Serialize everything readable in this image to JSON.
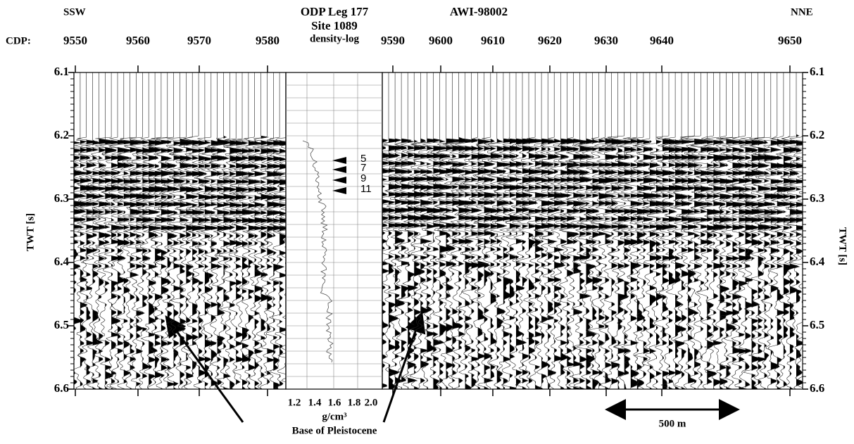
{
  "labels": {
    "left_direction": "SSW",
    "right_direction": "NNE",
    "site_title": "ODP Leg 177",
    "site": "Site 1089",
    "log": "density-log",
    "profile": "AWI-98002",
    "cdp_label": "CDP:",
    "y_axis_left": "TWT [s]",
    "y_axis_right": "TWT [s]",
    "density_unit": "g/cm³",
    "scale_bar": "500 m",
    "annotation": "Base of Pleistocene"
  },
  "cdp_ticks": [
    9550,
    9560,
    9570,
    9580,
    9590,
    9600,
    9610,
    9620,
    9630,
    9640,
    9650
  ],
  "twt_ticks": [
    6.1,
    6.2,
    6.3,
    6.4,
    6.5,
    6.6
  ],
  "density_ticks": [
    "1.2",
    "1.4",
    "1.6",
    "1.8",
    "2.0"
  ],
  "reflectors": [
    "5",
    "7",
    "9",
    "11"
  ]
}
